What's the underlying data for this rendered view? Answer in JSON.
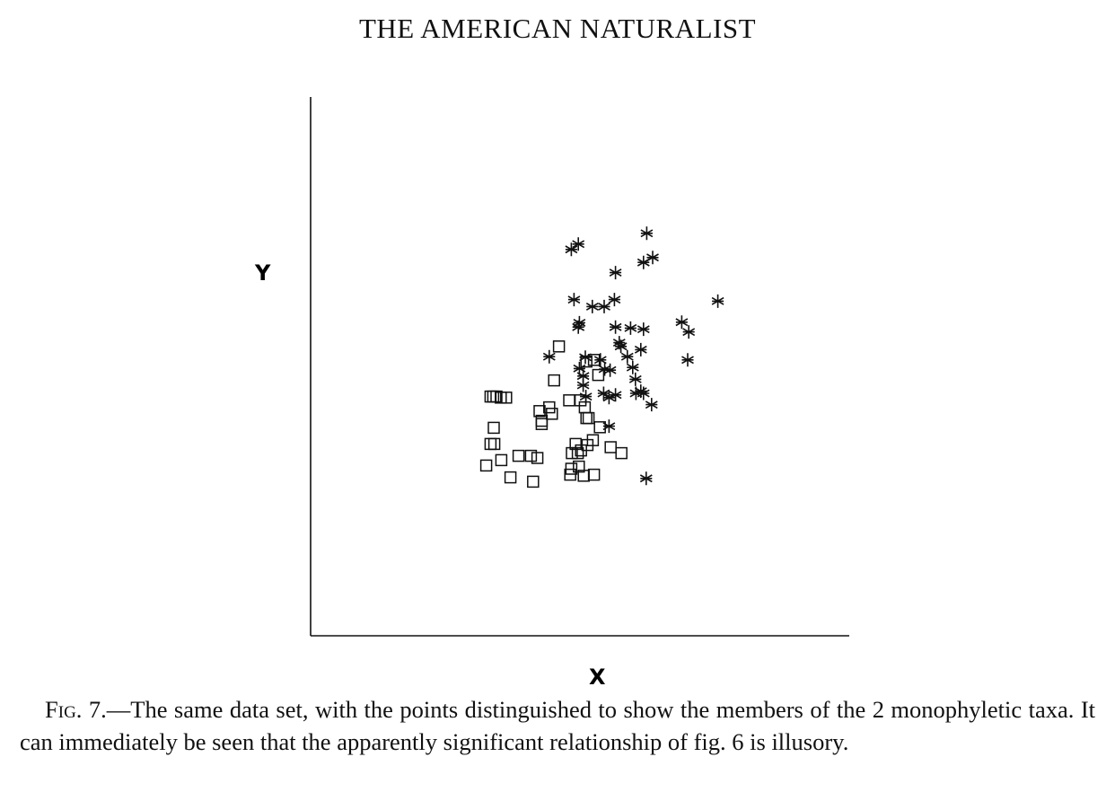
{
  "header": {
    "journal_title": "THE AMERICAN NATURALIST"
  },
  "caption": {
    "fig_label": "Fig.",
    "fig_number": " 7.",
    "text": "—The same data set, with the points distinguished to show the members of the 2 monophyletic taxa. It can immediately be seen that the apparently significant relationship of fig. 6 is illusory."
  },
  "chart_data": {
    "type": "scatter",
    "xlabel": "X",
    "ylabel": "Y",
    "xlim": [
      0,
      100
    ],
    "ylim": [
      0,
      100
    ],
    "grid": false,
    "legend": "none",
    "colors": {
      "ink": "#111111"
    },
    "series": [
      {
        "marker": "square",
        "points": [
          [
            33.4,
            44.4
          ],
          [
            33.9,
            44.4
          ],
          [
            34.5,
            44.4
          ],
          [
            35.3,
            44.2
          ],
          [
            36.3,
            44.2
          ],
          [
            34.0,
            38.6
          ],
          [
            33.4,
            35.6
          ],
          [
            34.1,
            35.6
          ],
          [
            32.6,
            31.6
          ],
          [
            35.4,
            32.6
          ],
          [
            37.1,
            29.4
          ],
          [
            38.6,
            33.4
          ],
          [
            40.9,
            33.4
          ],
          [
            42.1,
            33.0
          ],
          [
            41.3,
            28.6
          ],
          [
            42.9,
            39.9
          ],
          [
            42.9,
            39.3
          ],
          [
            42.5,
            41.7
          ],
          [
            44.3,
            42.4
          ],
          [
            44.8,
            41.2
          ],
          [
            45.2,
            47.4
          ],
          [
            46.1,
            53.7
          ],
          [
            48.0,
            43.7
          ],
          [
            49.2,
            35.6
          ],
          [
            48.5,
            33.9
          ],
          [
            49.6,
            33.9
          ],
          [
            49.8,
            31.4
          ],
          [
            48.2,
            29.9
          ],
          [
            48.4,
            31.0
          ],
          [
            50.7,
            29.7
          ],
          [
            52.6,
            29.9
          ],
          [
            50.2,
            34.4
          ],
          [
            50.1,
            43.7
          ],
          [
            50.9,
            42.4
          ],
          [
            51.2,
            40.4
          ],
          [
            51.6,
            40.4
          ],
          [
            51.4,
            35.4
          ],
          [
            53.7,
            38.7
          ],
          [
            53.4,
            48.4
          ],
          [
            52.6,
            51.2
          ],
          [
            51.2,
            50.9
          ],
          [
            52.4,
            36.3
          ],
          [
            55.7,
            35.0
          ],
          [
            57.7,
            33.9
          ]
        ]
      },
      {
        "marker": "asterisk",
        "points": [
          [
            48.4,
            71.7
          ],
          [
            49.7,
            72.7
          ],
          [
            48.9,
            62.4
          ],
          [
            49.7,
            57.3
          ],
          [
            49.9,
            58.1
          ],
          [
            52.3,
            61.1
          ],
          [
            54.5,
            61.1
          ],
          [
            56.4,
            62.4
          ],
          [
            56.6,
            67.4
          ],
          [
            56.6,
            57.3
          ],
          [
            59.4,
            57.1
          ],
          [
            61.8,
            56.9
          ],
          [
            61.3,
            53.1
          ],
          [
            58.8,
            51.8
          ],
          [
            53.8,
            51.2
          ],
          [
            51.0,
            51.7
          ],
          [
            50.6,
            46.5
          ],
          [
            51.1,
            44.4
          ],
          [
            49.9,
            49.6
          ],
          [
            50.6,
            48.2
          ],
          [
            54.6,
            49.5
          ],
          [
            55.6,
            49.3
          ],
          [
            55.4,
            44.2
          ],
          [
            56.6,
            44.7
          ],
          [
            54.4,
            45.0
          ],
          [
            55.4,
            38.9
          ],
          [
            57.6,
            53.7
          ],
          [
            57.3,
            54.4
          ],
          [
            59.8,
            49.8
          ],
          [
            60.3,
            47.6
          ],
          [
            60.4,
            45.0
          ],
          [
            61.8,
            45.0
          ],
          [
            61.3,
            45.4
          ],
          [
            63.3,
            42.9
          ],
          [
            62.4,
            74.7
          ],
          [
            61.8,
            69.3
          ],
          [
            63.5,
            70.2
          ],
          [
            68.9,
            58.2
          ],
          [
            70.2,
            56.4
          ],
          [
            70.0,
            51.2
          ],
          [
            75.6,
            62.1
          ],
          [
            62.3,
            29.2
          ],
          [
            44.3,
            51.8
          ]
        ]
      }
    ]
  }
}
